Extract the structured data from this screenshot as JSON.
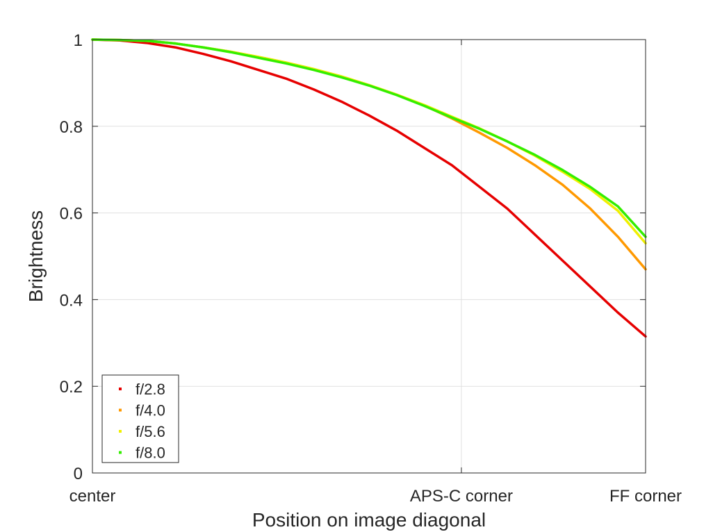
{
  "chart_data": {
    "type": "line",
    "title": "",
    "xlabel": "Position on image diagonal",
    "ylabel": "Brightness",
    "xlim": [
      0,
      1
    ],
    "ylim": [
      0,
      1
    ],
    "grid": true,
    "legend_position": "bottom-left",
    "x_ticks": [
      {
        "value": 0,
        "label": "center"
      },
      {
        "value": 0.667,
        "label": "APS-C corner"
      },
      {
        "value": 1,
        "label": "FF corner"
      }
    ],
    "y_ticks": [
      {
        "value": 0,
        "label": "0"
      },
      {
        "value": 0.2,
        "label": "0.2"
      },
      {
        "value": 0.4,
        "label": "0.4"
      },
      {
        "value": 0.6,
        "label": "0.6"
      },
      {
        "value": 0.8,
        "label": "0.8"
      },
      {
        "value": 1,
        "label": "1"
      }
    ],
    "x": [
      0,
      0.05,
      0.1,
      0.15,
      0.2,
      0.25,
      0.3,
      0.35,
      0.4,
      0.45,
      0.5,
      0.55,
      0.6,
      0.65,
      0.7,
      0.75,
      0.8,
      0.85,
      0.9,
      0.95,
      1.0
    ],
    "series": [
      {
        "name": "f/2.8",
        "color": "#e60000",
        "values": [
          1.0,
          0.998,
          0.992,
          0.982,
          0.967,
          0.95,
          0.93,
          0.91,
          0.885,
          0.857,
          0.825,
          0.79,
          0.75,
          0.71,
          0.66,
          0.61,
          0.55,
          0.49,
          0.43,
          0.37,
          0.315
        ]
      },
      {
        "name": "f/4.0",
        "color": "#ff9900",
        "values": [
          1.0,
          0.999,
          0.997,
          0.991,
          0.982,
          0.972,
          0.96,
          0.947,
          0.932,
          0.915,
          0.895,
          0.873,
          0.848,
          0.818,
          0.785,
          0.75,
          0.71,
          0.665,
          0.61,
          0.545,
          0.47
        ]
      },
      {
        "name": "f/5.6",
        "color": "#f0f000",
        "values": [
          1.0,
          0.999,
          0.997,
          0.991,
          0.982,
          0.972,
          0.96,
          0.947,
          0.932,
          0.915,
          0.895,
          0.873,
          0.849,
          0.822,
          0.795,
          0.765,
          0.732,
          0.695,
          0.655,
          0.605,
          0.53
        ]
      },
      {
        "name": "f/8.0",
        "color": "#33ee00",
        "values": [
          1.0,
          0.999,
          0.997,
          0.991,
          0.982,
          0.971,
          0.958,
          0.945,
          0.93,
          0.913,
          0.894,
          0.872,
          0.847,
          0.82,
          0.794,
          0.765,
          0.734,
          0.699,
          0.66,
          0.615,
          0.545
        ]
      }
    ]
  }
}
